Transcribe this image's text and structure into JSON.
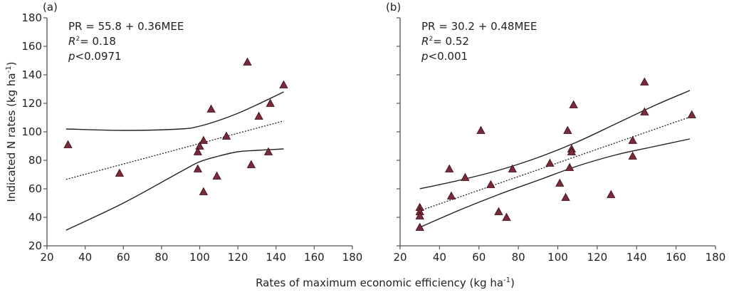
{
  "chart_data": [
    {
      "type": "scatter",
      "panel_label": "(a)",
      "equation": "PR = 55.8 + 0.36MEE",
      "r2_label": "R",
      "r2_sup": "2",
      "r2_value": "= 0.18",
      "p_label": "p",
      "p_value": "<0.0971",
      "xlim": [
        20,
        180
      ],
      "ylim": [
        20,
        180
      ],
      "xticks": [
        20,
        40,
        60,
        80,
        100,
        120,
        140,
        160,
        180
      ],
      "yticks": [
        20,
        40,
        60,
        80,
        100,
        120,
        140,
        160,
        180
      ],
      "fit": {
        "intercept": 55.8,
        "slope": 0.36,
        "x_range": [
          30,
          144
        ]
      },
      "ci_upper": [
        [
          30,
          102
        ],
        [
          60,
          101
        ],
        [
          90,
          102
        ],
        [
          100,
          104
        ],
        [
          110,
          108
        ],
        [
          120,
          113
        ],
        [
          130,
          119
        ],
        [
          144,
          128
        ]
      ],
      "ci_lower": [
        [
          30,
          31
        ],
        [
          60,
          50
        ],
        [
          90,
          72
        ],
        [
          100,
          79
        ],
        [
          110,
          83
        ],
        [
          120,
          86
        ],
        [
          130,
          87
        ],
        [
          144,
          88
        ]
      ],
      "points": [
        [
          31,
          91
        ],
        [
          58,
          71
        ],
        [
          125,
          149
        ],
        [
          144,
          133
        ],
        [
          137,
          120
        ],
        [
          131,
          111
        ],
        [
          106,
          116
        ],
        [
          114,
          97
        ],
        [
          102,
          94
        ],
        [
          100,
          90
        ],
        [
          99,
          86
        ],
        [
          99,
          74
        ],
        [
          109,
          69
        ],
        [
          102,
          58
        ],
        [
          127,
          77
        ],
        [
          136,
          86
        ]
      ]
    },
    {
      "type": "scatter",
      "panel_label": "(b)",
      "equation": "PR = 30.2 + 0.48MEE",
      "r2_label": "R",
      "r2_sup": "2",
      "r2_value": "= 0.52",
      "p_label": "p",
      "p_value": "<0.001",
      "xlim": [
        20,
        180
      ],
      "ylim": [
        20,
        180
      ],
      "xticks": [
        20,
        40,
        60,
        80,
        100,
        120,
        140,
        160,
        180
      ],
      "yticks": [
        20,
        40,
        60,
        80,
        100,
        120,
        140,
        160,
        180
      ],
      "fit": {
        "intercept": 30.2,
        "slope": 0.48,
        "x_range": [
          30,
          167
        ]
      },
      "ci_upper": [
        [
          30,
          60
        ],
        [
          50,
          66
        ],
        [
          70,
          73
        ],
        [
          90,
          82
        ],
        [
          110,
          93
        ],
        [
          130,
          106
        ],
        [
          150,
          119
        ],
        [
          167,
          129
        ]
      ],
      "ci_lower": [
        [
          30,
          33
        ],
        [
          50,
          45
        ],
        [
          70,
          56
        ],
        [
          90,
          66
        ],
        [
          110,
          76
        ],
        [
          130,
          84
        ],
        [
          150,
          90
        ],
        [
          167,
          95
        ]
      ],
      "points": [
        [
          30,
          47
        ],
        [
          30,
          44
        ],
        [
          30,
          41
        ],
        [
          30,
          33
        ],
        [
          45,
          74
        ],
        [
          46,
          55
        ],
        [
          53,
          68
        ],
        [
          61,
          101
        ],
        [
          66,
          63
        ],
        [
          70,
          44
        ],
        [
          74,
          40
        ],
        [
          77,
          74
        ],
        [
          96,
          78
        ],
        [
          101,
          64
        ],
        [
          104,
          54
        ],
        [
          105,
          101
        ],
        [
          107,
          88
        ],
        [
          107,
          86
        ],
        [
          106,
          75
        ],
        [
          108,
          119
        ],
        [
          127,
          56
        ],
        [
          138,
          94
        ],
        [
          138,
          83
        ],
        [
          144,
          135
        ],
        [
          144,
          114
        ],
        [
          168,
          112
        ]
      ]
    }
  ],
  "ylabel": "Indicated N rates (kg ha",
  "ylabel_sup": "-1",
  "ylabel_end": ")",
  "xlabel": "Rates of maximum economic efficiency (kg ha",
  "xlabel_sup": "-1",
  "xlabel_end": ")",
  "colors": {
    "marker": "#7a2a3a",
    "marker_edge": "#3a1018",
    "line": "#222222",
    "axis": "#555555"
  }
}
